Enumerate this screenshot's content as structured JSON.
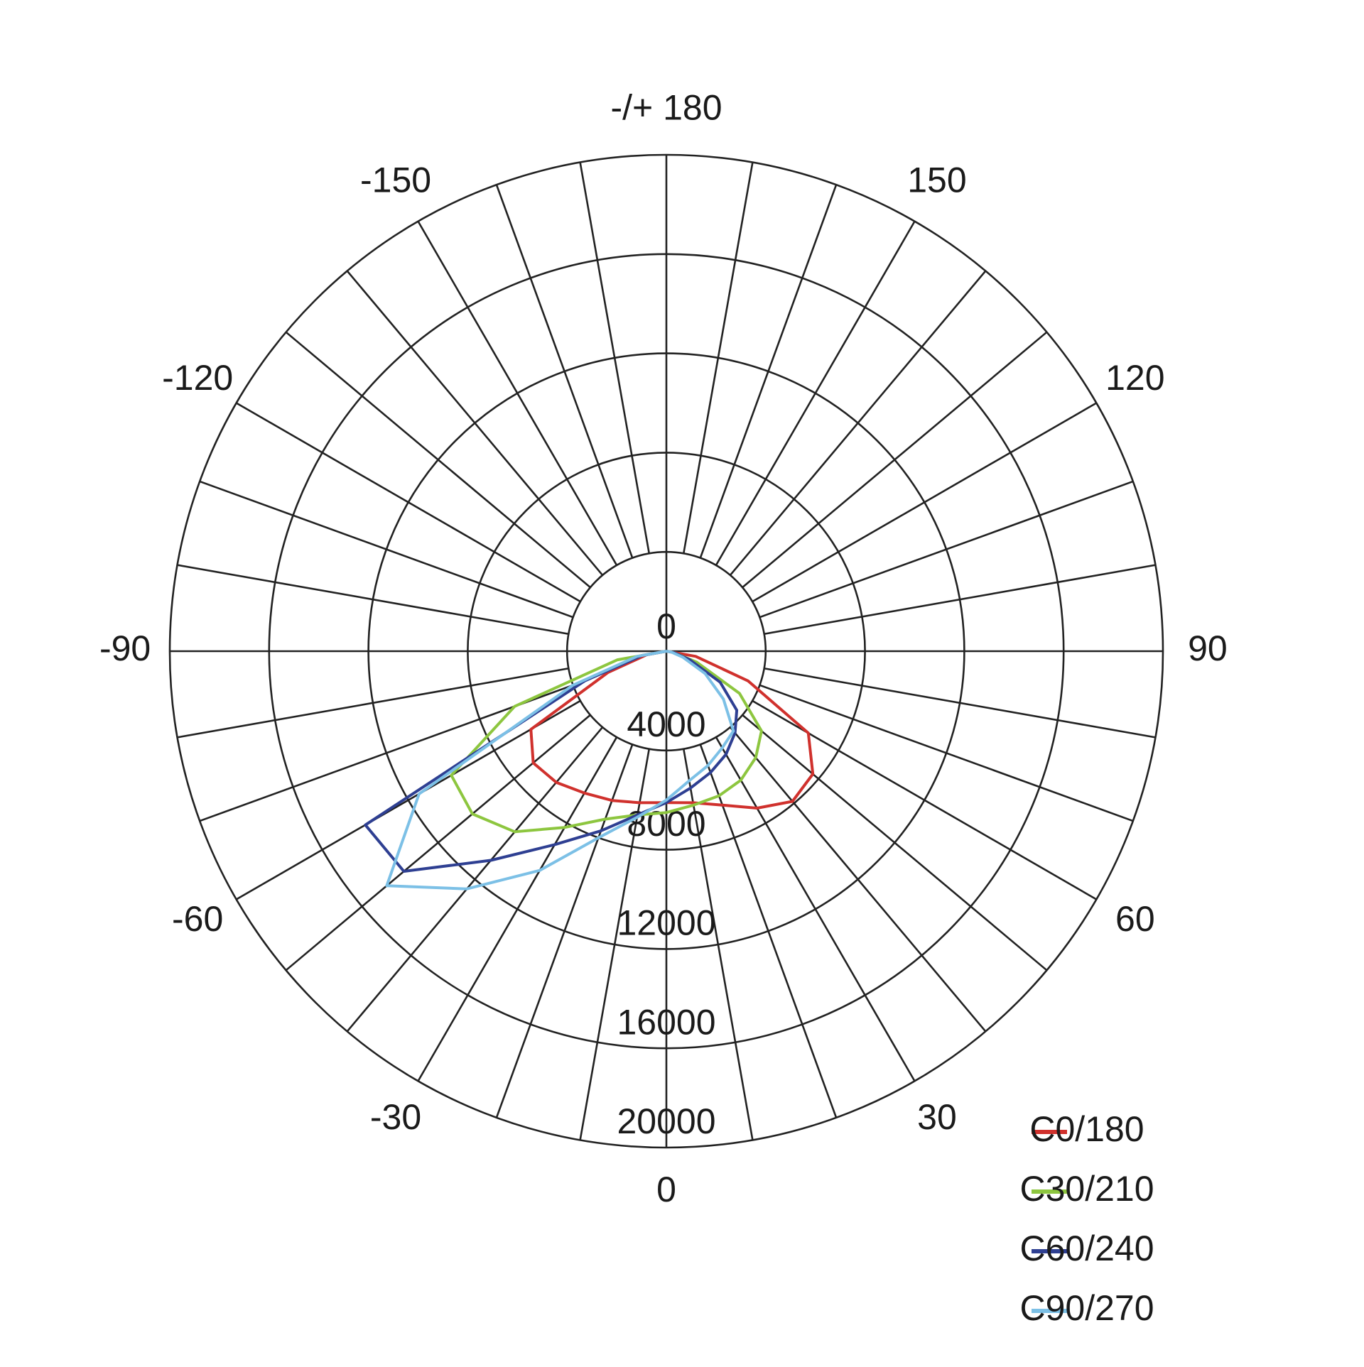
{
  "chart_data": {
    "type": "polar-line",
    "x": [
      -90,
      -80,
      -70,
      -60,
      -50,
      -40,
      -30,
      -20,
      -10,
      0,
      10,
      20,
      30,
      40,
      50,
      60,
      70,
      80,
      90
    ],
    "series": [
      {
        "name": "C0/180",
        "color": "#d0312d",
        "values": [
          0,
          800,
          2500,
          6300,
          7000,
          6900,
          6600,
          6400,
          6200,
          6100,
          6200,
          6600,
          7300,
          7900,
          7700,
          6600,
          3500,
          1200,
          0
        ]
      },
      {
        "name": "C30/210",
        "color": "#8dc63f",
        "values": [
          0,
          2000,
          6500,
          10000,
          10200,
          9500,
          8200,
          7200,
          6700,
          6500,
          6300,
          6200,
          6000,
          5600,
          5000,
          3400,
          1300,
          300,
          0
        ]
      },
      {
        "name": "C60/240",
        "color": "#2e3f92",
        "values": [
          0,
          1000,
          3500,
          14000,
          13800,
          11000,
          9000,
          7700,
          6700,
          6100,
          5600,
          5200,
          4800,
          4300,
          3700,
          2500,
          1000,
          300,
          0
        ]
      },
      {
        "name": "C90/270",
        "color": "#7cc0e6",
        "values": [
          0,
          1200,
          4000,
          11500,
          14700,
          12500,
          10200,
          8000,
          6800,
          6000,
          5300,
          4900,
          4500,
          4200,
          3000,
          1800,
          700,
          200,
          0
        ]
      }
    ],
    "xticks": [
      0,
      30,
      60,
      90,
      120,
      150,
      {
        "value": 180,
        "label": "-/+ 180"
      },
      -150,
      -120,
      -90,
      -60,
      -30
    ],
    "rlim": [
      0,
      20000
    ],
    "rticks": [
      0,
      4000,
      8000,
      12000,
      16000,
      20000
    ],
    "grid": true,
    "legend": "bottom-right"
  }
}
